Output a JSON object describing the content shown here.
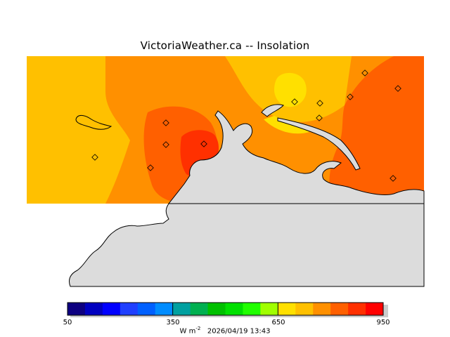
{
  "header": {
    "title": "VictoriaWeather.ca  --  Insolation"
  },
  "legend": {
    "min": 50,
    "max": 950,
    "tick_labels": [
      "50",
      "350",
      "650",
      "950"
    ],
    "units_base": "W m",
    "units_exp": "-2",
    "timestamp": "2026/04/19 13:43",
    "colors": [
      "#0d0080",
      "#0000c0",
      "#0000ff",
      "#1f3fff",
      "#0060ff",
      "#008cff",
      "#00a0a0",
      "#00b050",
      "#00c000",
      "#00e000",
      "#20ff00",
      "#a0ff00",
      "#ffe000",
      "#ffc000",
      "#ff9000",
      "#ff6000",
      "#ff3000",
      "#ff0000"
    ]
  },
  "map": {
    "land_color": "#dcdcdc",
    "station_count": 12
  }
}
